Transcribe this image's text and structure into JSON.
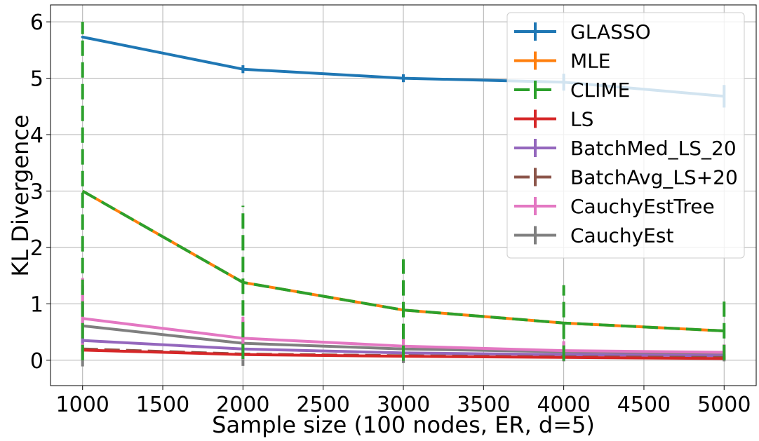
{
  "chart_data": {
    "type": "line",
    "title": "",
    "xlabel": "Sample size (100 nodes, ER, d=5)",
    "ylabel": "KL Divergence",
    "x": [
      1000,
      2000,
      3000,
      4000,
      5000
    ],
    "xlim": [
      800,
      5200
    ],
    "ylim": [
      -0.45,
      6.3
    ],
    "xticks": [
      "1000",
      "1500",
      "2000",
      "2500",
      "3000",
      "3500",
      "4000",
      "4500",
      "5000"
    ],
    "yticks": [
      "0",
      "1",
      "2",
      "3",
      "4",
      "5",
      "6"
    ],
    "grid": true,
    "legend_position": "top-right",
    "series": [
      {
        "name": "GLASSO",
        "color": "#1f77b4",
        "dash": "solid",
        "values": [
          5.73,
          5.16,
          5.0,
          4.93,
          4.68
        ],
        "errors": [
          0.02,
          0.07,
          0.07,
          0.15,
          0.2
        ]
      },
      {
        "name": "MLE",
        "color": "#ff7f0e",
        "dash": "solid",
        "values": [
          3.0,
          1.38,
          0.89,
          0.66,
          0.52
        ],
        "errors": [
          0,
          0,
          0,
          0,
          0
        ]
      },
      {
        "name": "CLIME",
        "color": "#2ca02c",
        "dash": "dashed",
        "values": [
          3.0,
          1.38,
          0.89,
          0.66,
          0.52
        ],
        "errors": [
          3.0,
          1.36,
          0.9,
          0.67,
          0.52
        ]
      },
      {
        "name": "LS",
        "color": "#d62728",
        "dash": "solid",
        "values": [
          0.18,
          0.1,
          0.07,
          0.05,
          0.03
        ],
        "errors": [
          0.03,
          0.02,
          0.02,
          0.02,
          0.02
        ]
      },
      {
        "name": "BatchMed_LS_20",
        "color": "#9467bd",
        "dash": "solid",
        "values": [
          0.35,
          0.2,
          0.13,
          0.1,
          0.08
        ],
        "errors": [
          0.05,
          0.04,
          0.03,
          0.03,
          0.03
        ]
      },
      {
        "name": "BatchAvg_LS+20",
        "color": "#8c564b",
        "dash": "dashed",
        "values": [
          0.2,
          0.11,
          0.08,
          0.06,
          0.05
        ],
        "errors": [
          0.04,
          0.03,
          0.03,
          0.03,
          0.03
        ]
      },
      {
        "name": "CauchyEstTree",
        "color": "#e377c2",
        "dash": "solid",
        "values": [
          0.74,
          0.39,
          0.25,
          0.17,
          0.14
        ],
        "errors": [
          0.72,
          0.38,
          0.24,
          0.17,
          0.14
        ]
      },
      {
        "name": "CauchyEst",
        "color": "#7f7f7f",
        "dash": "solid",
        "values": [
          0.61,
          0.3,
          0.2,
          0.15,
          0.12
        ],
        "errors": [
          0.72,
          0.4,
          0.25,
          0.17,
          0.14
        ]
      }
    ]
  }
}
